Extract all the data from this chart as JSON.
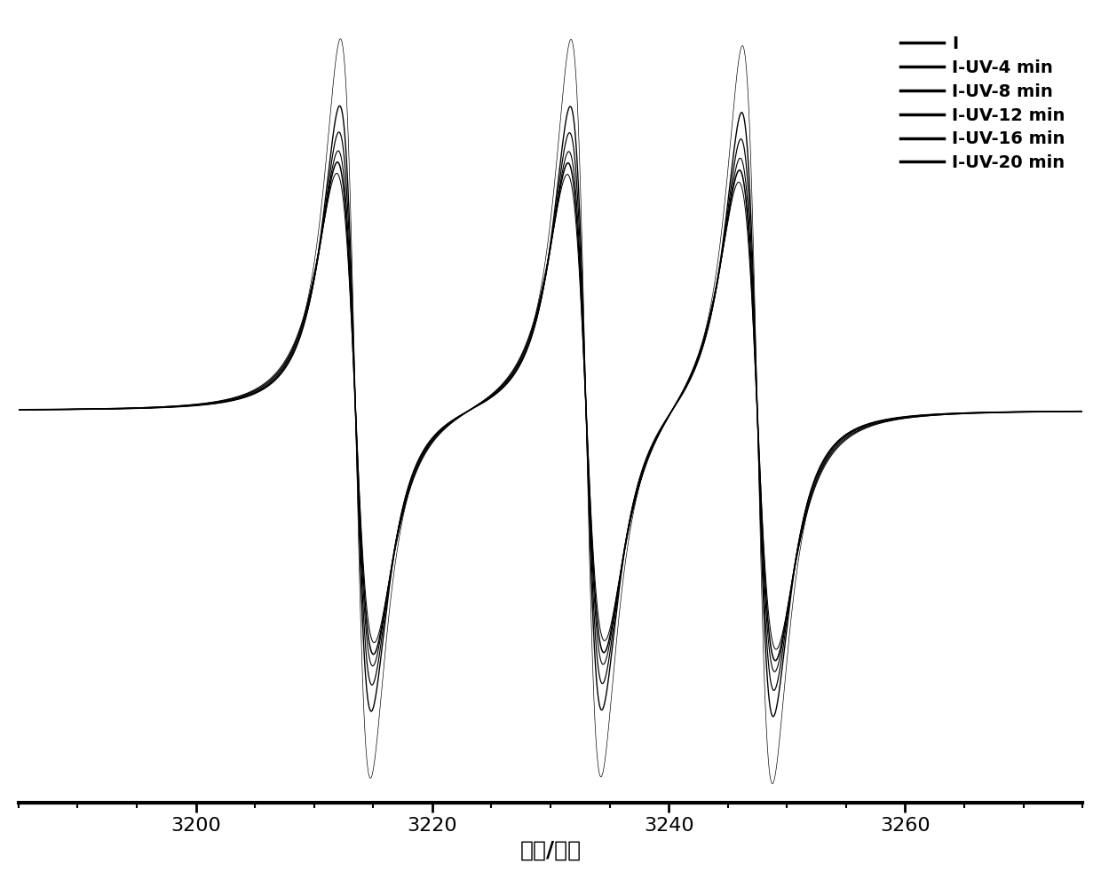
{
  "xlabel": "磁场/高斯",
  "xlabel_fontsize": 18,
  "xticks": [
    3200,
    3220,
    3240,
    3260
  ],
  "xlim": [
    3185,
    3275
  ],
  "ylim": [
    -1.05,
    1.05
  ],
  "legend_labels": [
    "I",
    "I-UV-4 min",
    "I-UV-8 min",
    "I-UV-12 min",
    "I-UV-16 min",
    "I-UV-20 min"
  ],
  "legend_fontsize": 14,
  "line_color": "#000000",
  "background": "#ffffff",
  "peak_centers": [
    3213.5,
    3233.0,
    3247.5
  ],
  "amplitudes": [
    1.0,
    0.82,
    0.75,
    0.7,
    0.67,
    0.64
  ],
  "linewidths": [
    1.2,
    2.5,
    2.2,
    2.0,
    2.8,
    1.8
  ],
  "tick_fontsize": 16
}
